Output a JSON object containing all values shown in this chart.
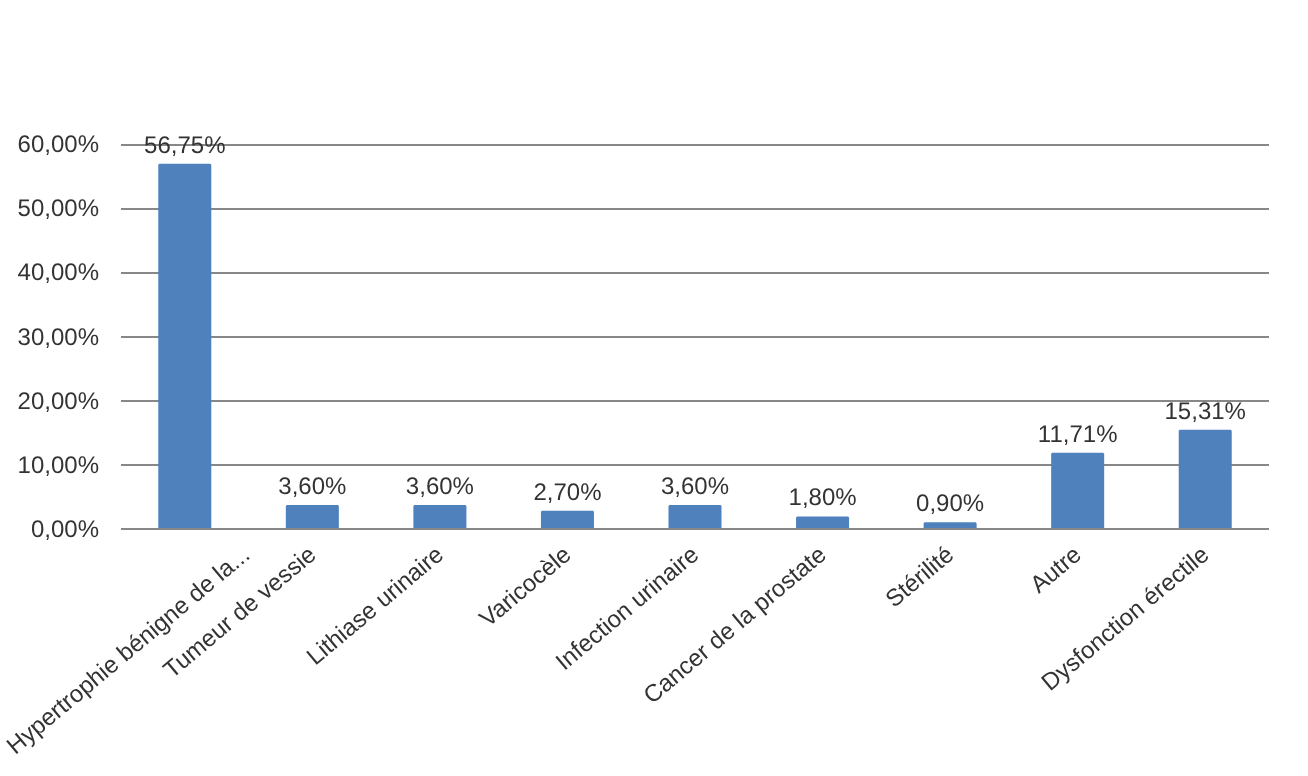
{
  "chart_data": {
    "type": "bar",
    "categories": [
      "Hypertrophie bénigne de la...",
      "Tumeur de vessie",
      "Lithiase urinaire",
      "Varicocèle",
      "Infection urinaire",
      "Cancer de la prostate",
      "Stérilité",
      "Autre",
      "Dysfonction érectile"
    ],
    "values": [
      56.75,
      3.6,
      3.6,
      2.7,
      3.6,
      1.8,
      0.9,
      11.71,
      15.31
    ],
    "value_labels": [
      "56,75%",
      "3,60%",
      "3,60%",
      "2,70%",
      "3,60%",
      "1,80%",
      "0,90%",
      "11,71%",
      "15,31%"
    ],
    "color": "#4f81bd",
    "ylim": [
      0,
      60
    ],
    "yticks": [
      {
        "value": 0,
        "label": "0,00%"
      },
      {
        "value": 10,
        "label": "10,00%"
      },
      {
        "value": 20,
        "label": "20,00%"
      },
      {
        "value": 30,
        "label": "30,00%"
      },
      {
        "value": 40,
        "label": "40,00%"
      },
      {
        "value": 50,
        "label": "50,00%"
      },
      {
        "value": 60,
        "label": "60,00%"
      }
    ],
    "grid": "y"
  }
}
